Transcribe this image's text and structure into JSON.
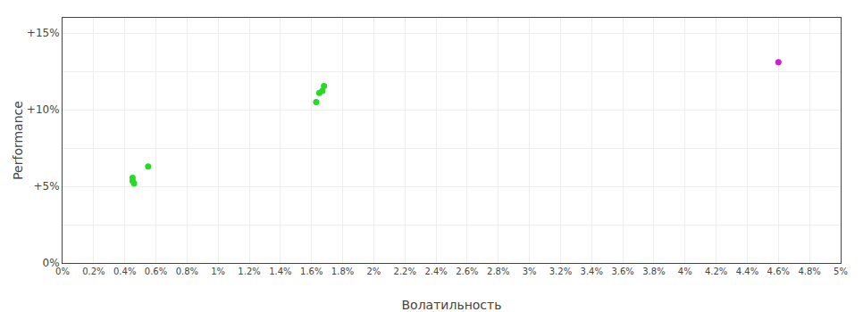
{
  "chart_data": {
    "type": "scatter",
    "xlabel": "Волатильность",
    "ylabel": "Performance",
    "series": [
      {
        "color": "#22dd22",
        "x": [
          0.45,
          0.45,
          0.46,
          0.55,
          1.63,
          1.65,
          1.67,
          1.68
        ],
        "values": [
          5.35,
          5.55,
          5.2,
          6.3,
          10.5,
          11.1,
          11.25,
          11.55
        ]
      },
      {
        "color": "#cc22cc",
        "x": [
          4.6
        ],
        "values": [
          13.1
        ]
      }
    ],
    "xlim": [
      0,
      5.0
    ],
    "ylim": [
      0,
      16
    ],
    "xticks": [
      {
        "value": 0,
        "label": "0%"
      },
      {
        "value": 0.2,
        "label": "0.2%"
      },
      {
        "value": 0.4,
        "label": "0.4%"
      },
      {
        "value": 0.6,
        "label": "0.6%"
      },
      {
        "value": 0.8,
        "label": "0.8%"
      },
      {
        "value": 1.0,
        "label": "1%"
      },
      {
        "value": 1.2,
        "label": "1.2%"
      },
      {
        "value": 1.4,
        "label": "1.4%"
      },
      {
        "value": 1.6,
        "label": "1.6%"
      },
      {
        "value": 1.8,
        "label": "1.8%"
      },
      {
        "value": 2.0,
        "label": "2%"
      },
      {
        "value": 2.2,
        "label": "2.2%"
      },
      {
        "value": 2.4,
        "label": "2.4%"
      },
      {
        "value": 2.6,
        "label": "2.6%"
      },
      {
        "value": 2.8,
        "label": "2.8%"
      },
      {
        "value": 3.0,
        "label": "3%"
      },
      {
        "value": 3.2,
        "label": "3.2%"
      },
      {
        "value": 3.4,
        "label": "3.4%"
      },
      {
        "value": 3.6,
        "label": "3.6%"
      },
      {
        "value": 3.8,
        "label": "3.8%"
      },
      {
        "value": 4.0,
        "label": "4%"
      },
      {
        "value": 4.2,
        "label": "4.2%"
      },
      {
        "value": 4.4,
        "label": "4.4%"
      },
      {
        "value": 4.6,
        "label": "4.6%"
      },
      {
        "value": 4.8,
        "label": "4.8%"
      },
      {
        "value": 5.0,
        "label": "5%"
      }
    ],
    "yticks": [
      {
        "value": 0,
        "label": "0%"
      },
      {
        "value": 2.5,
        "label": null
      },
      {
        "value": 5,
        "label": "+5%"
      },
      {
        "value": 7.5,
        "label": null
      },
      {
        "value": 10,
        "label": "+10%"
      },
      {
        "value": 12.5,
        "label": null
      },
      {
        "value": 15,
        "label": "+15%"
      }
    ],
    "grid": true
  }
}
